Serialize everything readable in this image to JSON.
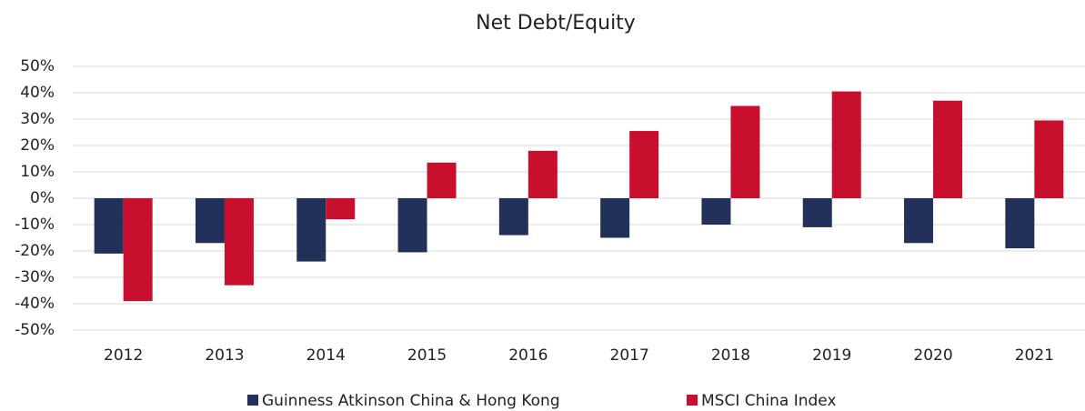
{
  "chart_data": {
    "type": "bar",
    "title": "Net Debt/Equity",
    "categories": [
      "2012",
      "2013",
      "2014",
      "2015",
      "2016",
      "2017",
      "2018",
      "2019",
      "2020",
      "2021"
    ],
    "series": [
      {
        "name": "Guinness Atkinson China & Hong Kong",
        "color": "#22305a",
        "values": [
          -21,
          -17,
          -24,
          -20.5,
          -14,
          -15,
          -10,
          -11,
          -17,
          -19
        ]
      },
      {
        "name": "MSCI China Index",
        "color": "#c8102e",
        "values": [
          -39,
          -33,
          -8,
          13.5,
          18,
          25.5,
          35,
          40.5,
          37,
          29.5
        ]
      }
    ],
    "ylim": [
      -50,
      50
    ],
    "yticks": [
      {
        "value": -50,
        "label": "-50%"
      },
      {
        "value": -40,
        "label": "-40%"
      },
      {
        "value": -30,
        "label": "-30%"
      },
      {
        "value": -20,
        "label": "-20%"
      },
      {
        "value": -10,
        "label": "-10%"
      },
      {
        "value": 0,
        "label": "0%"
      },
      {
        "value": 10,
        "label": "10%"
      },
      {
        "value": 20,
        "label": "20%"
      },
      {
        "value": 30,
        "label": "30%"
      },
      {
        "value": 40,
        "label": "40%"
      },
      {
        "value": 50,
        "label": "50%"
      }
    ],
    "grid": true,
    "legend": "bottom"
  }
}
